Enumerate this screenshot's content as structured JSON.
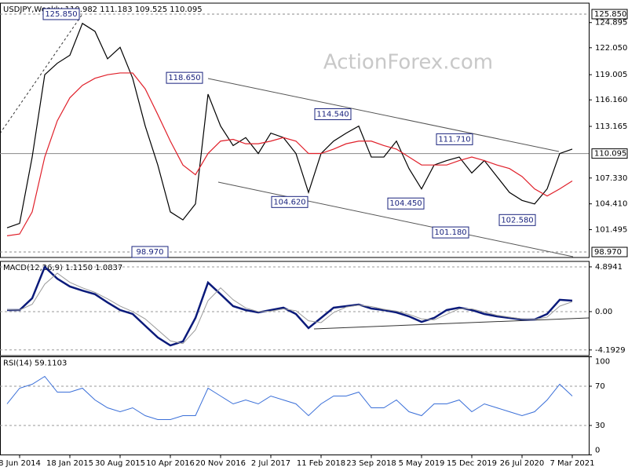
{
  "chart_data": [
    {
      "type": "line",
      "title": "USDJPY,Weekly  110.982 111.183 109.525 110.095",
      "watermark": "ActionForex.com",
      "ylim": [
        98.35,
        127.09
      ],
      "grid": false,
      "yticks": [
        {
          "value": 124.895,
          "label": "124.895"
        },
        {
          "value": 122.05,
          "label": "122.050"
        },
        {
          "value": 119.005,
          "label": "119.005"
        },
        {
          "value": 116.16,
          "label": "116.160"
        },
        {
          "value": 113.165,
          "label": "113.165"
        },
        {
          "value": 107.33,
          "label": "107.330"
        },
        {
          "value": 104.41,
          "label": "104.410"
        },
        {
          "value": 101.495,
          "label": "101.495"
        }
      ],
      "levels": [
        {
          "value": 125.85,
          "label": "125.850",
          "style": "dashed"
        },
        {
          "value": 110.095,
          "label": "110.095",
          "style": "solid"
        },
        {
          "value": 98.97,
          "label": "98.970",
          "style": "dashed"
        }
      ],
      "annotations": [
        {
          "value": 125.85,
          "label": "125.850"
        },
        {
          "value": 118.65,
          "label": "118.650"
        },
        {
          "value": 114.54,
          "label": "114.540"
        },
        {
          "value": 111.71,
          "label": "111.710"
        },
        {
          "value": 104.62,
          "label": "104.620"
        },
        {
          "value": 104.45,
          "label": "104.450"
        },
        {
          "value": 101.18,
          "label": "101.180"
        },
        {
          "value": 102.58,
          "label": "102.580"
        },
        {
          "value": 98.97,
          "label": "98.970"
        }
      ],
      "series": [
        {
          "color": "#000000",
          "width": 1.2,
          "values": [
            101.7,
            102.2,
            109.7,
            119.0,
            120.3,
            121.2,
            124.8,
            123.9,
            120.8,
            122.1,
            118.6,
            113.2,
            108.8,
            103.5,
            102.6,
            104.4,
            116.8,
            113.2,
            111.0,
            111.9,
            110.1,
            112.4,
            111.9,
            110.1,
            105.7,
            110.1,
            111.5,
            112.4,
            113.2,
            109.7,
            109.7,
            111.5,
            108.4,
            106.1,
            108.8,
            109.3,
            109.7,
            107.9,
            109.3,
            107.5,
            105.7,
            104.8,
            104.4,
            106.1,
            110.1,
            110.6
          ]
        },
        {
          "color": "#e0202a",
          "width": 1.2,
          "values": [
            100.8,
            101.0,
            103.5,
            109.7,
            113.8,
            116.4,
            117.8,
            118.6,
            119.0,
            119.2,
            119.2,
            117.4,
            114.5,
            111.5,
            108.8,
            107.7,
            110.1,
            111.5,
            111.7,
            111.2,
            111.2,
            111.5,
            111.9,
            111.5,
            110.1,
            110.1,
            110.6,
            111.2,
            111.5,
            111.5,
            111.0,
            110.6,
            109.7,
            108.8,
            108.8,
            108.8,
            109.3,
            109.7,
            109.3,
            108.8,
            108.4,
            107.5,
            106.1,
            105.3,
            106.1,
            107.0
          ]
        }
      ]
    },
    {
      "type": "line",
      "title": "MACD(12,26,9) 1.1150 1.0837",
      "ylim": [
        -4.81,
        5.49
      ],
      "grid": true,
      "yticks": [
        4.8941,
        {
          "value": 0,
          "label": "0.00"
        },
        -4.1929
      ],
      "series": [
        {
          "color": "#0a1a7a",
          "width": 2.5,
          "values": [
            0.17,
            0.17,
            1.46,
            4.89,
            3.6,
            2.75,
            2.3,
            1.9,
            1.0,
            0.17,
            -0.26,
            -1.55,
            -2.83,
            -3.7,
            -3.26,
            -0.69,
            3.18,
            1.9,
            0.6,
            0.17,
            -0.09,
            0.17,
            0.43,
            -0.26,
            -1.8,
            -0.69,
            0.43,
            0.6,
            0.77,
            0.34,
            0.17,
            -0.09,
            -0.52,
            -1.12,
            -0.69,
            0.17,
            0.43,
            0.17,
            -0.26,
            -0.52,
            -0.69,
            -0.86,
            -0.86,
            -0.26,
            1.29,
            1.2
          ]
        },
        {
          "color": "#9a9a9a",
          "width": 1,
          "values": [
            0.2,
            0.17,
            0.8,
            3.0,
            4.2,
            3.2,
            2.6,
            2.1,
            1.4,
            0.6,
            0.0,
            -0.8,
            -2.0,
            -3.2,
            -3.5,
            -2.0,
            1.2,
            2.6,
            1.3,
            0.4,
            0.0,
            0.05,
            0.3,
            0.1,
            -1.0,
            -1.2,
            -0.1,
            0.5,
            0.7,
            0.55,
            0.25,
            0.05,
            -0.3,
            -0.8,
            -0.9,
            -0.3,
            0.3,
            0.3,
            -0.05,
            -0.4,
            -0.6,
            -0.8,
            -0.85,
            -0.6,
            0.6,
            1.08
          ]
        }
      ]
    },
    {
      "type": "line",
      "title": "RSI(14) 59.1103",
      "ylim": [
        0,
        100
      ],
      "grid": true,
      "yticks": [
        100,
        70,
        30,
        0
      ],
      "categories": [
        null,
        "8 Jun 2014",
        null,
        null,
        null,
        "18 Jan 2015",
        null,
        null,
        null,
        "30 Aug 2015",
        null,
        null,
        null,
        "10 Apr 2016",
        null,
        null,
        null,
        "20 Nov 2016",
        null,
        null,
        null,
        "2 Jul 2017",
        null,
        null,
        null,
        "11 Feb 2018",
        null,
        null,
        null,
        "23 Sep 2018",
        null,
        null,
        null,
        "5 May 2019",
        null,
        null,
        null,
        "15 Dec 2019",
        null,
        null,
        null,
        "26 Jul 2020",
        null,
        null,
        null,
        "7 Mar 2021"
      ],
      "series": [
        {
          "color": "#3a6fd8",
          "width": 1,
          "values": [
            52,
            68,
            72,
            80,
            64,
            64,
            68,
            56,
            48,
            44,
            48,
            40,
            36,
            36,
            40,
            40,
            68,
            60,
            52,
            56,
            52,
            60,
            56,
            52,
            40,
            52,
            60,
            60,
            64,
            48,
            48,
            56,
            44,
            40,
            52,
            52,
            56,
            44,
            52,
            48,
            44,
            40,
            44,
            56,
            72,
            60
          ]
        }
      ]
    }
  ]
}
